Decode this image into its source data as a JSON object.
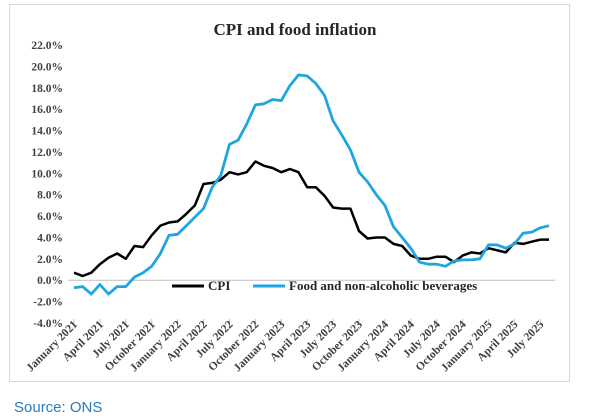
{
  "source": "Source: ONS",
  "chart_data": {
    "type": "line",
    "title": "CPI and food inflation",
    "xlabel": "",
    "ylabel": "",
    "ylim": [
      -4,
      22
    ],
    "yticks": [
      -4,
      -2,
      0,
      2,
      4,
      6,
      8,
      10,
      12,
      14,
      16,
      18,
      20,
      22
    ],
    "ytick_labels": [
      "-4.0%",
      "-2.0%",
      "0.0%",
      "2.0%",
      "4.0%",
      "6.0%",
      "8.0%",
      "10.0%",
      "12.0%",
      "14.0%",
      "16.0%",
      "18.0%",
      "20.0%",
      "22.0%"
    ],
    "xtick_labels": [
      "January 2021",
      "April 2021",
      "July 2021",
      "October 2021",
      "January 2022",
      "April 2022",
      "July 2022",
      "October 2022",
      "January 2023",
      "April 2023",
      "July 2023",
      "October 2023",
      "January 2024",
      "April 2024",
      "July 2024",
      "October 2024",
      "January 2025",
      "April 2025",
      "July 2025"
    ],
    "x": [
      "2021-01",
      "2021-02",
      "2021-03",
      "2021-04",
      "2021-05",
      "2021-06",
      "2021-07",
      "2021-08",
      "2021-09",
      "2021-10",
      "2021-11",
      "2021-12",
      "2022-01",
      "2022-02",
      "2022-03",
      "2022-04",
      "2022-05",
      "2022-06",
      "2022-07",
      "2022-08",
      "2022-09",
      "2022-10",
      "2022-11",
      "2022-12",
      "2023-01",
      "2023-02",
      "2023-03",
      "2023-04",
      "2023-05",
      "2023-06",
      "2023-07",
      "2023-08",
      "2023-09",
      "2023-10",
      "2023-11",
      "2023-12",
      "2024-01",
      "2024-02",
      "2024-03",
      "2024-04",
      "2024-05",
      "2024-06",
      "2024-07",
      "2024-08",
      "2024-09",
      "2024-10",
      "2024-11",
      "2024-12",
      "2025-01",
      "2025-02",
      "2025-03",
      "2025-04",
      "2025-05",
      "2025-06",
      "2025-07",
      "2025-08"
    ],
    "series": [
      {
        "name": "CPI",
        "color": "#000000",
        "values": [
          0.7,
          0.4,
          0.7,
          1.5,
          2.1,
          2.5,
          2.0,
          3.2,
          3.1,
          4.2,
          5.1,
          5.4,
          5.5,
          6.2,
          7.0,
          9.0,
          9.1,
          9.4,
          10.1,
          9.9,
          10.1,
          11.1,
          10.7,
          10.5,
          10.1,
          10.4,
          10.1,
          8.7,
          8.7,
          7.9,
          6.8,
          6.7,
          6.7,
          4.6,
          3.9,
          4.0,
          4.0,
          3.4,
          3.2,
          2.3,
          2.0,
          2.0,
          2.2,
          2.2,
          1.7,
          2.3,
          2.6,
          2.5,
          3.0,
          2.8,
          2.6,
          3.5,
          3.4,
          3.6,
          3.8,
          3.8
        ]
      },
      {
        "name": "Food and non-alcoholic beverages",
        "color": "#1fa6e0",
        "values": [
          -0.7,
          -0.6,
          -1.3,
          -0.4,
          -1.3,
          -0.6,
          -0.6,
          0.3,
          0.7,
          1.3,
          2.5,
          4.2,
          4.3,
          5.1,
          5.9,
          6.7,
          8.7,
          9.8,
          12.7,
          13.1,
          14.6,
          16.4,
          16.5,
          16.9,
          16.8,
          18.2,
          19.2,
          19.1,
          18.4,
          17.3,
          14.9,
          13.6,
          12.2,
          10.1,
          9.2,
          8.0,
          7.0,
          5.0,
          4.0,
          3.0,
          1.7,
          1.5,
          1.5,
          1.3,
          1.8,
          1.9,
          1.9,
          2.0,
          3.3,
          3.3,
          3.0,
          3.4,
          4.4,
          4.5,
          4.9,
          5.1
        ]
      }
    ],
    "legend_position": "lower-middle",
    "grid": false
  }
}
